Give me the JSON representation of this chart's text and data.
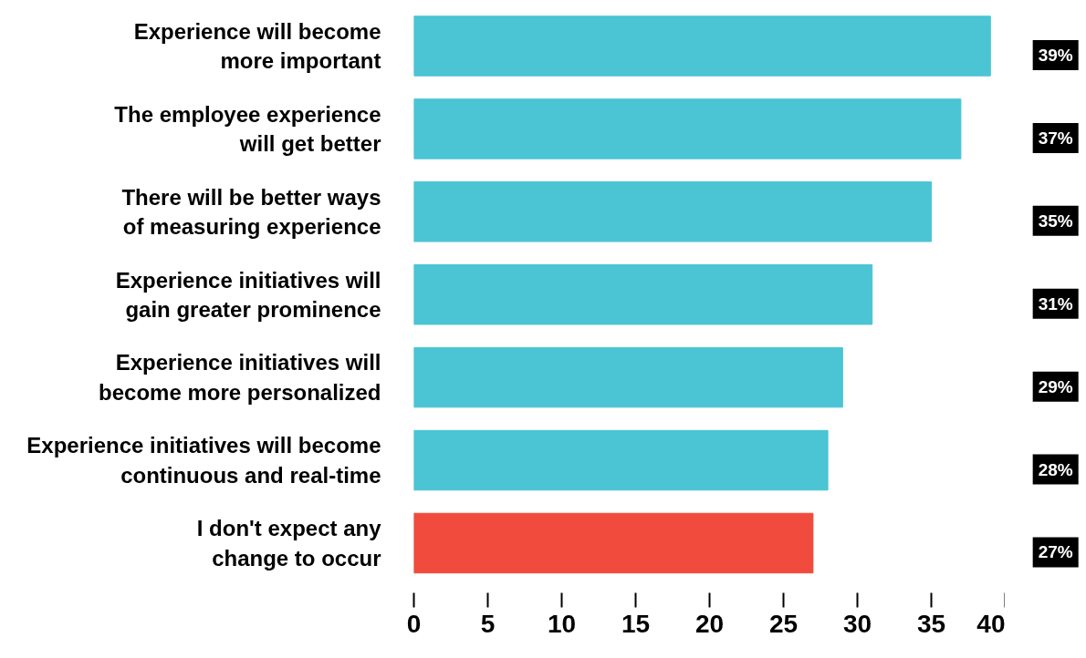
{
  "chart_data": {
    "type": "bar",
    "orientation": "horizontal",
    "categories": [
      "Experience will become\nmore important",
      "The employee experience\nwill get better",
      "There will be better ways\nof measuring experience",
      "Experience initiatives will\ngain greater prominence",
      "Experience initiatives will\nbecome more personalized",
      "Experience initiatives will become\ncontinuous and real-time",
      "I don't expect any\nchange to occur"
    ],
    "values": [
      39,
      37,
      35,
      31,
      29,
      28,
      27
    ],
    "colors": [
      "#4bc4d4",
      "#4bc4d4",
      "#4bc4d4",
      "#4bc4d4",
      "#4bc4d4",
      "#4bc4d4",
      "#f04b3c"
    ],
    "value_labels": [
      "39%",
      "37%",
      "35%",
      "31%",
      "29%",
      "28%",
      "27%"
    ],
    "xlim": [
      0,
      40
    ],
    "xticks": [
      0,
      5,
      10,
      15,
      20,
      25,
      30,
      35,
      40
    ],
    "grid": false
  }
}
